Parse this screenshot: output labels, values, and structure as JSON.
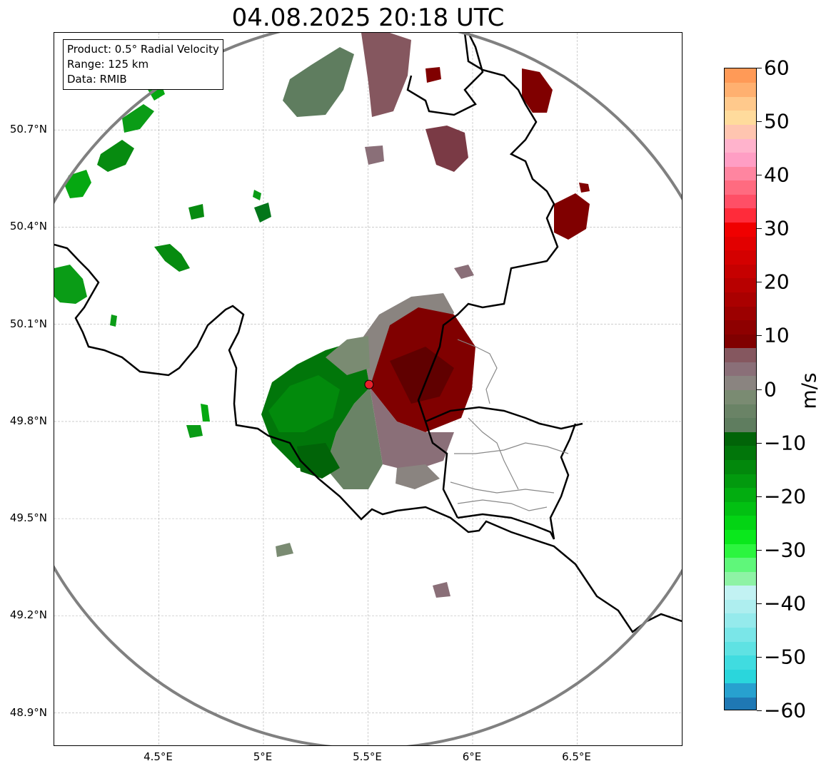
{
  "title": "04.08.2025 20:18 UTC",
  "info_box": {
    "product": "Product: 0.5° Radial Velocity",
    "range": "Range: 125 km",
    "data": "Data: RMIB"
  },
  "map_data": {
    "lon_range": [
      4.0,
      7.0
    ],
    "lat_range": [
      48.8,
      51.0
    ],
    "lon_ticks": [
      {
        "value": 4.5,
        "label": "4.5°E"
      },
      {
        "value": 5.0,
        "label": "5°E"
      },
      {
        "value": 5.5,
        "label": "5.5°E"
      },
      {
        "value": 6.0,
        "label": "6°E"
      },
      {
        "value": 6.5,
        "label": "6.5°E"
      }
    ],
    "lat_ticks": [
      {
        "value": 50.7,
        "label": "50.7°N"
      },
      {
        "value": 50.4,
        "label": "50.4°N"
      },
      {
        "value": 50.1,
        "label": "50.1°N"
      },
      {
        "value": 49.8,
        "label": "49.8°N"
      },
      {
        "value": 49.5,
        "label": "49.5°N"
      },
      {
        "value": 49.2,
        "label": "49.2°N"
      },
      {
        "value": 48.9,
        "label": "48.9°N"
      }
    ],
    "radar_site": {
      "lon": 5.505,
      "lat": 49.914,
      "color": "#e8202a"
    },
    "range_ring_km": 125,
    "grid": true
  },
  "colorbar": {
    "unit": "m/s",
    "range": [
      -60,
      60
    ],
    "ticks": [
      {
        "value": 60,
        "label": "60"
      },
      {
        "value": 50,
        "label": "50"
      },
      {
        "value": 40,
        "label": "40"
      },
      {
        "value": 30,
        "label": "30"
      },
      {
        "value": 20,
        "label": "20"
      },
      {
        "value": 10,
        "label": "10"
      },
      {
        "value": 0,
        "label": "0"
      },
      {
        "value": -10,
        "label": "−10"
      },
      {
        "value": -20,
        "label": "−20"
      },
      {
        "value": -30,
        "label": "−30"
      },
      {
        "value": -40,
        "label": "−40"
      },
      {
        "value": -50,
        "label": "−50"
      },
      {
        "value": -60,
        "label": "−60"
      }
    ],
    "colors": [
      "#1f78b4",
      "#27a1cf",
      "#2ad6dc",
      "#40dce0",
      "#5fe2e3",
      "#7ae6e8",
      "#95eaec",
      "#aeeeef",
      "#c2f2f3",
      "#8ef3a5",
      "#5ff77a",
      "#2cf53f",
      "#0ae81c",
      "#03d414",
      "#02c012",
      "#02ad10",
      "#029a0e",
      "#02880c",
      "#01760a",
      "#016408",
      "#5f7d5f",
      "#6a8366",
      "#7a8b72",
      "#8a8480",
      "#8a6f78",
      "#85575f",
      "#800000",
      "#8e0000",
      "#9c0000",
      "#aa0000",
      "#b80000",
      "#c60000",
      "#d40000",
      "#e20000",
      "#f00000",
      "#ff2b3a",
      "#ff4f66",
      "#ff6b80",
      "#ff85a0",
      "#ff9ec4",
      "#ffb3cc",
      "#ffc5b0",
      "#ffdb9c",
      "#ffc98c",
      "#ffb070",
      "#ff9a57"
    ]
  }
}
